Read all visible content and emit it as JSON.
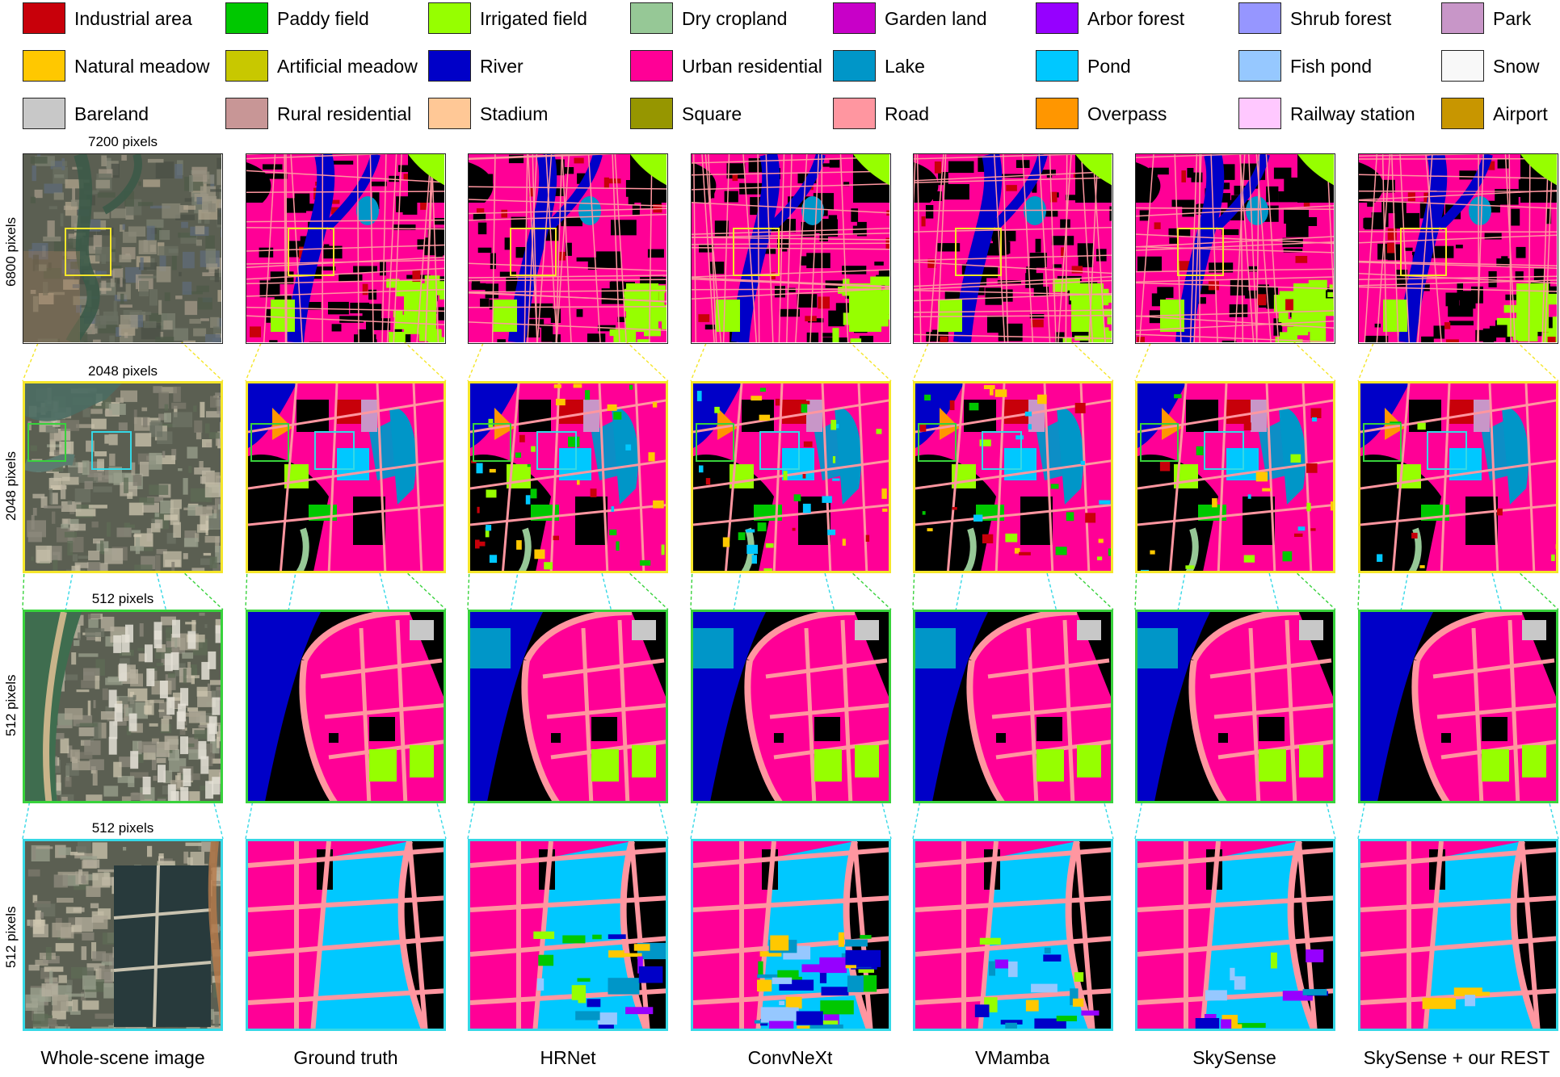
{
  "legend": {
    "items": [
      {
        "label": "Industrial area",
        "color": "#c8000a"
      },
      {
        "label": "Paddy field",
        "color": "#00c800"
      },
      {
        "label": "Irrigated field",
        "color": "#96ff00"
      },
      {
        "label": "Dry cropland",
        "color": "#96c896"
      },
      {
        "label": "Garden land",
        "color": "#c800c8"
      },
      {
        "label": "Arbor forest",
        "color": "#9600ff"
      },
      {
        "label": "Shrub forest",
        "color": "#9696ff"
      },
      {
        "label": "Park",
        "color": "#c896c8"
      },
      {
        "label": "Natural meadow",
        "color": "#ffc800"
      },
      {
        "label": "Artificial meadow",
        "color": "#c8c800"
      },
      {
        "label": "River",
        "color": "#0000c8"
      },
      {
        "label": "Urban residential",
        "color": "#ff0096"
      },
      {
        "label": "Lake",
        "color": "#0096c8"
      },
      {
        "label": "Pond",
        "color": "#00c8ff"
      },
      {
        "label": "Fish pond",
        "color": "#96c8ff"
      },
      {
        "label": "Snow",
        "color": "#f8f8f8"
      },
      {
        "label": "Bareland",
        "color": "#c8c8c8"
      },
      {
        "label": "Rural residential",
        "color": "#c89696"
      },
      {
        "label": "Stadium",
        "color": "#ffc896"
      },
      {
        "label": "Square",
        "color": "#969600"
      },
      {
        "label": "Road",
        "color": "#ff96a0"
      },
      {
        "label": "Overpass",
        "color": "#ff9600"
      },
      {
        "label": "Railway station",
        "color": "#ffc8ff"
      },
      {
        "label": "Airport",
        "color": "#c89600"
      }
    ]
  },
  "dimensions": {
    "row1_top": "7200 pixels",
    "row1_side": "6800 pixels",
    "row2_top": "2048 pixels",
    "row2_side": "2048 pixels",
    "row3_top": "512 pixels",
    "row3_side": "512 pixels",
    "row4_top": "512 pixels",
    "row4_side": "512 pixels"
  },
  "columns": [
    "Whole-scene image",
    "Ground truth",
    "HRNet",
    "ConvNeXt",
    "VMamba",
    "SkySense",
    "SkySense + our REST"
  ],
  "colors": {
    "zoom1_box": "#f5e62a",
    "zoom2_box": "#38d23c",
    "zoom3_box": "#35d8e6",
    "background_class": "#000000"
  }
}
